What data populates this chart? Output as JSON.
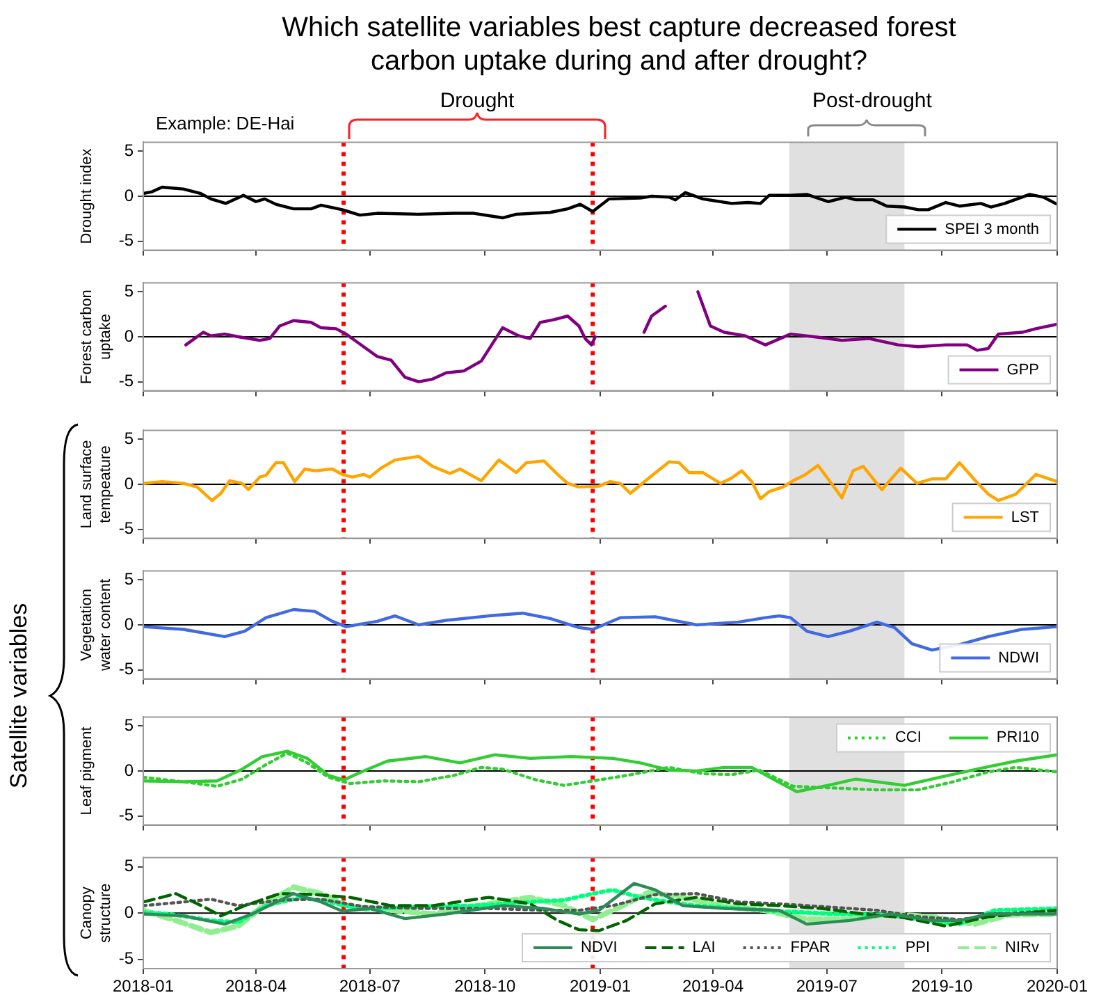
{
  "chart_data": [
    {
      "type": "line",
      "title": "Which satellite variables best capture decreased forest carbon uptake during and after drought?",
      "ylabel": "Drought index",
      "annotations": [
        "Example: DE-Hai",
        "Drought",
        "Post-drought"
      ],
      "xlim": [
        "2018-01",
        "2020-01"
      ],
      "xticks": [
        "2018-01",
        "2018-04",
        "2018-07",
        "2018-10",
        "2019-01",
        "2019-04",
        "2019-07",
        "2019-10",
        "2020-01"
      ],
      "ylim": [
        -6,
        6
      ],
      "yticks": [
        -5,
        0,
        5
      ],
      "tick_labels": "y",
      "legend": "bottom right",
      "grid": false,
      "ref_lines": [
        {
          "axis": "y",
          "value": 0,
          "color": "#000000"
        },
        {
          "axis": "x",
          "value": "2018-06-10",
          "color": "#ff0000",
          "line_style": "dotted"
        },
        {
          "axis": "x",
          "value": "2018-12-26",
          "color": "#ff0000",
          "line_style": "dotted"
        }
      ],
      "bands": [
        {
          "axis": "x",
          "from": "2019-06-01",
          "to": "2019-09-01",
          "color": "#e0e0e0"
        }
      ],
      "series": [
        {
          "name": "SPEI 3 month",
          "color": "#000000",
          "line_style": "solid",
          "x": [
            "2018-01-01",
            "2018-01-08",
            "2018-01-16",
            "2018-02-02",
            "2018-02-16",
            "2018-02-24",
            "2018-03-08",
            "2018-03-22",
            "2018-04-01",
            "2018-04-08",
            "2018-04-17",
            "2018-05-01",
            "2018-05-15",
            "2018-05-23",
            "2018-06-09",
            "2018-06-23",
            "2018-07-07",
            "2018-08-09",
            "2018-09-06",
            "2018-09-22",
            "2018-10-15",
            "2018-10-26",
            "2018-11-22",
            "2018-12-06",
            "2018-12-16",
            "2018-12-26",
            "2019-01-08",
            "2019-02-02",
            "2019-02-11",
            "2019-02-25",
            "2019-03-02",
            "2019-03-10",
            "2019-03-24",
            "2019-04-16",
            "2019-04-29",
            "2019-05-09",
            "2019-05-16",
            "2019-06-02",
            "2019-06-15",
            "2019-07-02",
            "2019-07-16",
            "2019-07-24",
            "2019-08-07",
            "2019-08-18",
            "2019-09-01",
            "2019-09-12",
            "2019-09-20",
            "2019-10-04",
            "2019-10-15",
            "2019-11-01",
            "2019-11-09",
            "2019-11-20",
            "2019-12-10",
            "2019-12-21",
            "2020-01-01"
          ],
          "values": [
            0.3,
            0.5,
            1.0,
            0.8,
            0.3,
            -0.3,
            -0.8,
            0.1,
            -0.6,
            -0.3,
            -0.9,
            -1.4,
            -1.4,
            -1.0,
            -1.5,
            -2.1,
            -1.9,
            -2.0,
            -1.9,
            -1.9,
            -2.4,
            -2.0,
            -1.8,
            -1.4,
            -0.9,
            -1.7,
            -0.3,
            -0.2,
            0,
            -0.1,
            -0.4,
            0.4,
            -0.3,
            -0.8,
            -0.7,
            -0.8,
            0.1,
            0.1,
            0.2,
            -0.6,
            -0.1,
            -0.4,
            -0.4,
            -1.1,
            -1.2,
            -1.5,
            -1.5,
            -0.7,
            -1.1,
            -0.8,
            -1.2,
            -0.8,
            0.2,
            -0.1,
            -0.9
          ]
        }
      ]
    },
    {
      "type": "line",
      "ylabel": "Forest carbon uptake",
      "xlim": [
        "2018-01",
        "2020-01"
      ],
      "xticks": [
        "2018-01",
        "2018-04",
        "2018-07",
        "2018-10",
        "2019-01",
        "2019-04",
        "2019-07",
        "2019-10",
        "2020-01"
      ],
      "ylim": [
        -6,
        6
      ],
      "yticks": [
        -5,
        0,
        5
      ],
      "tick_labels": "y",
      "legend": "bottom right",
      "grid": false,
      "ref_lines": [
        {
          "axis": "y",
          "value": 0,
          "color": "#000000"
        },
        {
          "axis": "x",
          "value": "2018-06-10",
          "color": "#ff0000",
          "line_style": "dotted"
        },
        {
          "axis": "x",
          "value": "2018-12-26",
          "color": "#ff0000",
          "line_style": "dotted"
        }
      ],
      "bands": [
        {
          "axis": "x",
          "from": "2019-06-01",
          "to": "2019-09-01",
          "color": "#e0e0e0"
        }
      ],
      "series": [
        {
          "name": "GPP",
          "color": "#800080",
          "line_style": "solid",
          "x": [
            "2018-02-04",
            "2018-02-18",
            "2018-02-24",
            "2018-03-07",
            "2018-03-18",
            "2018-04-04",
            "2018-04-12",
            "2018-04-20",
            "2018-05-01",
            "2018-05-15",
            "2018-05-23",
            "2018-06-04",
            "2018-06-12",
            "2018-06-26",
            "2018-07-07",
            "2018-07-18",
            "2018-07-29",
            "2018-08-09",
            "2018-08-20",
            "2018-08-31",
            "2018-09-14",
            "2018-09-28",
            "2018-10-15",
            "2018-10-28",
            "2018-11-06",
            "2018-11-14",
            "2018-11-25",
            "2018-12-06",
            "2018-12-15",
            "2018-12-20",
            "2018-12-25",
            "2018-12-28",
            "2019-01-15",
            "2019-02-05",
            "2019-02-11",
            "2019-02-22",
            "2019-03-08",
            "2019-03-20",
            "2019-03-30",
            "2019-04-10",
            "2019-04-27",
            "2019-05-13",
            "2019-06-02",
            "2019-06-21",
            "2019-07-13",
            "2019-08-04",
            "2019-08-27",
            "2019-09-12",
            "2019-10-04",
            "2019-10-21",
            "2019-10-29",
            "2019-11-07",
            "2019-11-15",
            "2019-12-04",
            "2019-12-15",
            "2020-01-01"
          ],
          "values": [
            -0.9,
            0.5,
            0.1,
            0.3,
            0,
            -0.4,
            -0.2,
            1.2,
            1.8,
            1.6,
            1.0,
            0.9,
            0.3,
            -1.1,
            -2.2,
            -2.6,
            -4.5,
            -5.0,
            -4.7,
            -4.0,
            -3.8,
            -2.7,
            1.0,
            0.1,
            -0.2,
            1.6,
            1.9,
            2.3,
            1.2,
            -0.2,
            -0.9,
            0,
            null,
            0.5,
            2.3,
            3.4,
            null,
            5.0,
            1.2,
            0.5,
            0.1,
            -0.9,
            0.3,
            0,
            -0.4,
            -0.2,
            -0.9,
            -1.1,
            -0.9,
            -0.9,
            -1.5,
            -1.3,
            0.3,
            0.5,
            0.9,
            1.4
          ]
        }
      ]
    },
    {
      "type": "line",
      "ylabel": "Land surface tempeature",
      "xlim": [
        "2018-01",
        "2020-01"
      ],
      "xticks": [
        "2018-01",
        "2018-04",
        "2018-07",
        "2018-10",
        "2019-01",
        "2019-04",
        "2019-07",
        "2019-10",
        "2020-01"
      ],
      "ylim": [
        -6,
        6
      ],
      "yticks": [
        -5,
        0,
        5
      ],
      "tick_labels": "y",
      "legend": "bottom right",
      "grid": false,
      "ref_lines": [
        {
          "axis": "y",
          "value": 0,
          "color": "#000000"
        },
        {
          "axis": "x",
          "value": "2018-06-10",
          "color": "#ff0000",
          "line_style": "dotted"
        },
        {
          "axis": "x",
          "value": "2018-12-26",
          "color": "#ff0000",
          "line_style": "dotted"
        }
      ],
      "bands": [
        {
          "axis": "x",
          "from": "2019-06-01",
          "to": "2019-09-01",
          "color": "#e0e0e0"
        }
      ],
      "series": [
        {
          "name": "LST",
          "color": "#ffa500",
          "line_style": "solid",
          "x": [
            "2018-01-01",
            "2018-01-16",
            "2018-02-02",
            "2018-02-13",
            "2018-02-25",
            "2018-03-04",
            "2018-03-11",
            "2018-03-21",
            "2018-03-26",
            "2018-04-04",
            "2018-04-09",
            "2018-04-17",
            "2018-04-23",
            "2018-05-02",
            "2018-05-10",
            "2018-05-18",
            "2018-06-01",
            "2018-06-09",
            "2018-06-17",
            "2018-06-26",
            "2018-07-01",
            "2018-07-10",
            "2018-07-21",
            "2018-08-09",
            "2018-08-20",
            "2018-09-03",
            "2018-09-11",
            "2018-09-28",
            "2018-10-12",
            "2018-10-26",
            "2018-11-03",
            "2018-11-17",
            "2018-11-28",
            "2018-12-06",
            "2018-12-15",
            "2018-12-31",
            "2019-01-09",
            "2019-01-17",
            "2019-01-25",
            "2019-02-08",
            "2019-02-25",
            "2019-03-05",
            "2019-03-13",
            "2019-03-24",
            "2019-04-07",
            "2019-04-16",
            "2019-04-24",
            "2019-05-02",
            "2019-05-09",
            "2019-05-16",
            "2019-05-27",
            "2019-06-04",
            "2019-06-13",
            "2019-06-24",
            "2019-07-02",
            "2019-07-13",
            "2019-07-22",
            "2019-07-30",
            "2019-08-14",
            "2019-08-29",
            "2019-09-11",
            "2019-09-23",
            "2019-10-04",
            "2019-10-15",
            "2019-10-27",
            "2019-11-07",
            "2019-11-15",
            "2019-11-29",
            "2019-12-15",
            "2020-01-01"
          ],
          "values": [
            0.1,
            0.3,
            0.1,
            -0.3,
            -1.8,
            -1.0,
            0.4,
            0.1,
            -0.6,
            0.8,
            1.0,
            2.4,
            2.4,
            0.3,
            1.7,
            1.5,
            1.7,
            1.1,
            0.8,
            1.1,
            0.8,
            1.8,
            2.7,
            3.1,
            2.0,
            1.2,
            1.7,
            0.4,
            2.7,
            1.3,
            2.4,
            2.6,
            1.1,
            0.1,
            -0.3,
            -0.2,
            0.3,
            0.1,
            -1.0,
            0.6,
            2.5,
            2.4,
            1.3,
            1.3,
            0.1,
            0.7,
            1.5,
            0.3,
            -1.6,
            -0.8,
            -0.3,
            0.4,
            1.0,
            2.1,
            0.6,
            -1.5,
            1.5,
            2.0,
            -0.6,
            1.8,
            0.1,
            0.6,
            0.6,
            2.4,
            0.5,
            -1.1,
            -1.8,
            -1.1,
            1.1,
            0.3
          ]
        }
      ]
    },
    {
      "type": "line",
      "ylabel": "Vegetation water content",
      "annotations": [
        "Satellite variables"
      ],
      "xlim": [
        "2018-01",
        "2020-01"
      ],
      "xticks": [
        "2018-01",
        "2018-04",
        "2018-07",
        "2018-10",
        "2019-01",
        "2019-04",
        "2019-07",
        "2019-10",
        "2020-01"
      ],
      "ylim": [
        -6,
        6
      ],
      "yticks": [
        -5,
        0,
        5
      ],
      "tick_labels": "y",
      "legend": "bottom right",
      "grid": false,
      "ref_lines": [
        {
          "axis": "y",
          "value": 0,
          "color": "#000000"
        },
        {
          "axis": "x",
          "value": "2018-06-10",
          "color": "#ff0000",
          "line_style": "dotted"
        },
        {
          "axis": "x",
          "value": "2018-12-26",
          "color": "#ff0000",
          "line_style": "dotted"
        }
      ],
      "bands": [
        {
          "axis": "x",
          "from": "2019-06-01",
          "to": "2019-09-01",
          "color": "#e0e0e0"
        }
      ],
      "series": [
        {
          "name": "NDWI",
          "color": "#4169e1",
          "line_style": "solid",
          "x": [
            "2018-01-01",
            "2018-02-02",
            "2018-03-07",
            "2018-03-23",
            "2018-04-09",
            "2018-05-01",
            "2018-05-18",
            "2018-06-01",
            "2018-06-12",
            "2018-07-07",
            "2018-07-21",
            "2018-08-09",
            "2018-08-31",
            "2018-10-04",
            "2018-10-31",
            "2018-11-22",
            "2018-12-15",
            "2018-12-26",
            "2019-01-17",
            "2019-02-14",
            "2019-03-19",
            "2019-04-21",
            "2019-05-13",
            "2019-05-24",
            "2019-06-02",
            "2019-06-15",
            "2019-07-02",
            "2019-07-19",
            "2019-08-10",
            "2019-08-24",
            "2019-09-07",
            "2019-09-23",
            "2019-10-15",
            "2019-11-07",
            "2019-12-04",
            "2020-01-01"
          ],
          "values": [
            -0.2,
            -0.5,
            -1.3,
            -0.7,
            0.8,
            1.7,
            1.5,
            0.4,
            -0.2,
            0.4,
            1.0,
            0,
            0.5,
            1.0,
            1.3,
            0.7,
            -0.3,
            -0.5,
            0.8,
            0.9,
            0,
            0.3,
            0.8,
            1.0,
            0.8,
            -0.7,
            -1.3,
            -0.7,
            0.3,
            -0.3,
            -2.1,
            -2.8,
            -2.2,
            -1.3,
            -0.5,
            -0.2
          ]
        }
      ]
    },
    {
      "type": "line",
      "ylabel": "Leaf pigment",
      "xlim": [
        "2018-01",
        "2020-01"
      ],
      "xticks": [
        "2018-01",
        "2018-04",
        "2018-07",
        "2018-10",
        "2019-01",
        "2019-04",
        "2019-07",
        "2019-10",
        "2020-01"
      ],
      "ylim": [
        -6,
        6
      ],
      "yticks": [
        -5,
        0,
        5
      ],
      "tick_labels": "y",
      "legend": "top right",
      "grid": false,
      "ref_lines": [
        {
          "axis": "y",
          "value": 0,
          "color": "#000000"
        },
        {
          "axis": "x",
          "value": "2018-06-10",
          "color": "#ff0000",
          "line_style": "dotted"
        },
        {
          "axis": "x",
          "value": "2018-12-26",
          "color": "#ff0000",
          "line_style": "dotted"
        }
      ],
      "bands": [
        {
          "axis": "x",
          "from": "2019-06-01",
          "to": "2019-09-01",
          "color": "#e0e0e0"
        }
      ],
      "series": [
        {
          "name": "CCI",
          "color": "#32cd32",
          "line_style": "dotted",
          "x": [
            "2018-01-01",
            "2018-02-02",
            "2018-03-01",
            "2018-03-21",
            "2018-04-09",
            "2018-04-26",
            "2018-05-12",
            "2018-05-29",
            "2018-06-15",
            "2018-07-12",
            "2018-08-09",
            "2018-09-06",
            "2018-09-28",
            "2018-10-15",
            "2018-11-11",
            "2018-12-03",
            "2018-12-26",
            "2019-01-22",
            "2019-02-25",
            "2019-03-24",
            "2019-04-16",
            "2019-05-08",
            "2019-06-04",
            "2019-07-08",
            "2019-08-10",
            "2019-09-12",
            "2019-10-10",
            "2019-11-07",
            "2019-11-29",
            "2020-01-01"
          ],
          "values": [
            -0.7,
            -1.2,
            -1.7,
            -0.9,
            0.7,
            2.0,
            0.9,
            -0.7,
            -1.4,
            -1.1,
            -1.2,
            -0.5,
            0.4,
            0.2,
            -1.0,
            -1.6,
            -1.1,
            -0.5,
            0.4,
            -0.3,
            -0.4,
            0.1,
            -1.7,
            -1.9,
            -2.1,
            -2.1,
            -1.2,
            -0.1,
            0.4,
            -0.1
          ]
        },
        {
          "name": "PRI10",
          "color": "#32cd32",
          "line_style": "solid",
          "x": [
            "2018-01-01",
            "2018-02-02",
            "2018-03-01",
            "2018-03-21",
            "2018-04-06",
            "2018-04-26",
            "2018-05-12",
            "2018-05-29",
            "2018-06-10",
            "2018-06-26",
            "2018-07-15",
            "2018-08-15",
            "2018-09-11",
            "2018-10-09",
            "2018-11-06",
            "2018-12-09",
            "2019-01-11",
            "2019-02-02",
            "2019-02-25",
            "2019-03-19",
            "2019-04-10",
            "2019-05-02",
            "2019-05-19",
            "2019-06-07",
            "2019-07-02",
            "2019-07-24",
            "2019-09-01",
            "2019-09-29",
            "2019-11-01",
            "2019-11-29",
            "2020-01-01"
          ],
          "values": [
            -1.1,
            -1.2,
            -1.1,
            0.2,
            1.6,
            2.2,
            1.4,
            -0.5,
            -1.0,
            0,
            1.1,
            1.6,
            0.9,
            1.8,
            1.4,
            1.6,
            1.4,
            0.9,
            0.1,
            0,
            0.4,
            0.4,
            -0.9,
            -2.3,
            -1.6,
            -0.9,
            -1.6,
            -0.7,
            0.3,
            1.1,
            1.8
          ]
        }
      ]
    },
    {
      "type": "line",
      "ylabel": "Canopy structure",
      "xlim": [
        "2018-01",
        "2020-01"
      ],
      "xticks": [
        "2018-01",
        "2018-04",
        "2018-07",
        "2018-10",
        "2019-01",
        "2019-04",
        "2019-07",
        "2019-10",
        "2020-01"
      ],
      "ylim": [
        -6,
        6
      ],
      "yticks": [
        -5,
        0,
        5
      ],
      "legend": "bottom right",
      "grid": false,
      "ref_lines": [
        {
          "axis": "y",
          "value": 0,
          "color": "#000000"
        },
        {
          "axis": "x",
          "value": "2018-06-10",
          "color": "#ff0000",
          "line_style": "dotted"
        },
        {
          "axis": "x",
          "value": "2018-12-26",
          "color": "#ff0000",
          "line_style": "dotted"
        }
      ],
      "bands": [
        {
          "axis": "x",
          "from": "2019-06-01",
          "to": "2019-09-01",
          "color": "#e0e0e0"
        }
      ],
      "series": [
        {
          "name": "NDVI",
          "color": "#2e8b57",
          "line_style": "solid",
          "x": [
            "2018-01-01",
            "2018-02-02",
            "2018-03-07",
            "2018-03-29",
            "2018-05-01",
            "2018-05-23",
            "2018-06-09",
            "2018-07-01",
            "2018-07-29",
            "2018-08-31",
            "2018-10-15",
            "2018-11-17",
            "2018-12-15",
            "2018-12-31",
            "2019-01-28",
            "2019-02-14",
            "2019-03-08",
            "2019-04-10",
            "2019-05-24",
            "2019-06-15",
            "2019-07-19",
            "2019-08-21",
            "2019-09-23",
            "2019-10-15",
            "2019-11-07",
            "2020-01-01"
          ],
          "values": [
            -0.1,
            -0.3,
            -1.2,
            -0.1,
            2.1,
            1.2,
            0.2,
            0.5,
            -0.6,
            -0.1,
            0.8,
            0.5,
            -0.1,
            0.3,
            3.2,
            2.5,
            0.8,
            0.5,
            0.3,
            -1.2,
            -0.8,
            -0.1,
            -0.8,
            -0.8,
            -0.1,
            -0.1
          ]
        },
        {
          "name": "LAI",
          "color": "#006400",
          "line_style": "dashed",
          "x": [
            "2018-01-01",
            "2018-01-27",
            "2018-02-18",
            "2018-03-04",
            "2018-03-23",
            "2018-04-20",
            "2018-05-18",
            "2018-06-15",
            "2018-07-18",
            "2018-08-20",
            "2018-10-04",
            "2018-11-06",
            "2018-11-28",
            "2018-12-15",
            "2018-12-31",
            "2019-01-22",
            "2019-02-14",
            "2019-03-19",
            "2019-04-21",
            "2019-05-24",
            "2019-06-27",
            "2019-07-30",
            "2019-09-01",
            "2019-10-04",
            "2019-11-07",
            "2020-01-01"
          ],
          "values": [
            1.2,
            2.1,
            0.7,
            -0.3,
            0.8,
            2.1,
            2.0,
            1.7,
            0.8,
            0.8,
            1.7,
            1.0,
            -0.8,
            -1.8,
            -1.9,
            -0.8,
            1.0,
            1.7,
            1.0,
            0.8,
            0.5,
            -0.1,
            -0.5,
            -1.4,
            -0.4,
            0.3
          ]
        },
        {
          "name": "FPAR",
          "color": "#555555",
          "line_style": "dotted",
          "x": [
            "2018-01-01",
            "2018-02-02",
            "2018-02-24",
            "2018-03-18",
            "2018-04-20",
            "2018-05-23",
            "2018-06-26",
            "2018-08-09",
            "2018-10-04",
            "2018-11-17",
            "2018-12-15",
            "2019-01-11",
            "2019-02-14",
            "2019-03-19",
            "2019-04-21",
            "2019-05-24",
            "2019-06-27",
            "2019-08-10",
            "2019-09-12",
            "2019-10-15",
            "2019-11-18",
            "2020-01-01"
          ],
          "values": [
            0.8,
            1.2,
            1.5,
            0.8,
            1.4,
            1.5,
            0.7,
            0.5,
            0.5,
            0.3,
            0.3,
            0.8,
            2.0,
            2.1,
            1.2,
            1.0,
            0.7,
            0.3,
            -0.4,
            -0.7,
            -0.1,
            0.3
          ]
        },
        {
          "name": "PPI",
          "color": "#00ff7f",
          "line_style": "dotted",
          "x": [
            "2018-01-01",
            "2018-01-22",
            "2018-02-24",
            "2018-03-18",
            "2018-04-09",
            "2018-05-07",
            "2018-05-29",
            "2018-06-26",
            "2018-08-09",
            "2018-09-22",
            "2018-11-06",
            "2018-12-03",
            "2018-12-26",
            "2019-01-11",
            "2019-02-02",
            "2019-02-25",
            "2019-03-19",
            "2019-04-21",
            "2019-05-24",
            "2019-07-08",
            "2019-08-21",
            "2019-09-18",
            "2019-10-15",
            "2019-11-12",
            "2020-01-01"
          ],
          "values": [
            0.1,
            -0.1,
            -0.8,
            -1.0,
            0.8,
            1.7,
            1.2,
            0.4,
            0.7,
            0.8,
            1.2,
            1.4,
            2.1,
            2.5,
            1.7,
            1.2,
            0.8,
            0.5,
            0.2,
            -0.1,
            -0.2,
            -0.8,
            -1.2,
            0.3,
            0.5
          ]
        },
        {
          "name": "NIRv",
          "color": "#90ee90",
          "line_style": "dashed",
          "x": [
            "2018-01-01",
            "2018-01-27",
            "2018-02-24",
            "2018-03-18",
            "2018-04-09",
            "2018-05-01",
            "2018-05-23",
            "2018-06-15",
            "2018-07-12",
            "2018-08-20",
            "2018-10-04",
            "2018-11-06",
            "2018-12-03",
            "2018-12-26",
            "2019-01-22",
            "2019-02-08",
            "2019-03-08",
            "2019-04-10",
            "2019-05-13",
            "2019-06-15",
            "2019-07-19",
            "2019-08-21",
            "2019-09-23",
            "2019-10-27",
            "2019-11-23",
            "2020-01-01"
          ],
          "values": [
            0.3,
            -0.8,
            -2.1,
            -1.4,
            1.0,
            2.8,
            2.1,
            0.7,
            0.4,
            -0.1,
            1.0,
            1.7,
            0.8,
            -0.7,
            1.0,
            2.2,
            1.7,
            0.7,
            0.3,
            -0.7,
            -0.7,
            -0.1,
            -0.4,
            -1.2,
            -0.2,
            -0.1
          ]
        }
      ]
    }
  ]
}
